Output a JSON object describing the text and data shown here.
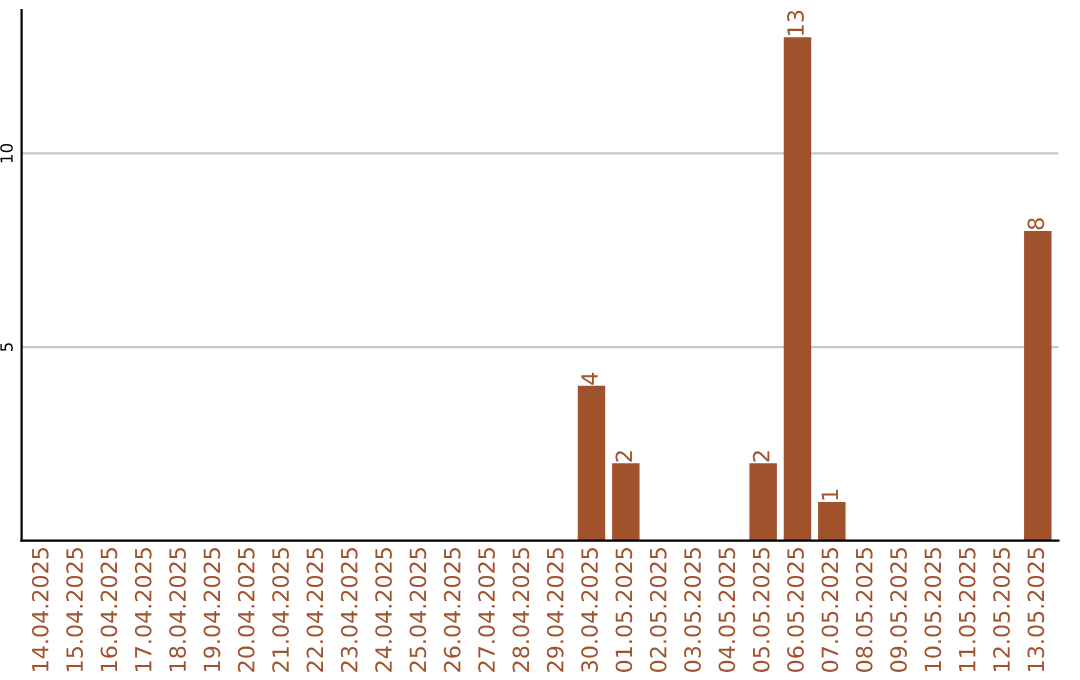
{
  "chart_data": {
    "type": "bar",
    "categories": [
      "14.04.2025",
      "15.04.2025",
      "16.04.2025",
      "17.04.2025",
      "18.04.2025",
      "19.04.2025",
      "20.04.2025",
      "21.04.2025",
      "22.04.2025",
      "23.04.2025",
      "24.04.2025",
      "25.04.2025",
      "26.04.2025",
      "27.04.2025",
      "28.04.2025",
      "29.04.2025",
      "30.04.2025",
      "01.05.2025",
      "02.05.2025",
      "03.05.2025",
      "04.05.2025",
      "05.05.2025",
      "06.05.2025",
      "07.05.2025",
      "08.05.2025",
      "09.05.2025",
      "10.05.2025",
      "11.05.2025",
      "12.05.2025",
      "13.05.2025"
    ],
    "values": [
      0,
      0,
      0,
      0,
      0,
      0,
      0,
      0,
      0,
      0,
      0,
      0,
      0,
      0,
      0,
      0,
      4,
      2,
      0,
      0,
      0,
      2,
      13,
      1,
      0,
      0,
      0,
      0,
      0,
      8
    ],
    "value_labels": [
      null,
      null,
      null,
      null,
      null,
      null,
      null,
      null,
      null,
      null,
      null,
      null,
      null,
      null,
      null,
      null,
      "4",
      "2",
      null,
      null,
      null,
      "2",
      "13",
      "1",
      null,
      null,
      null,
      null,
      null,
      "8"
    ],
    "color": "#a0522d",
    "ylim": [
      0,
      13.7
    ],
    "yticks": [
      5,
      10
    ],
    "grid": "y",
    "legend": false
  }
}
